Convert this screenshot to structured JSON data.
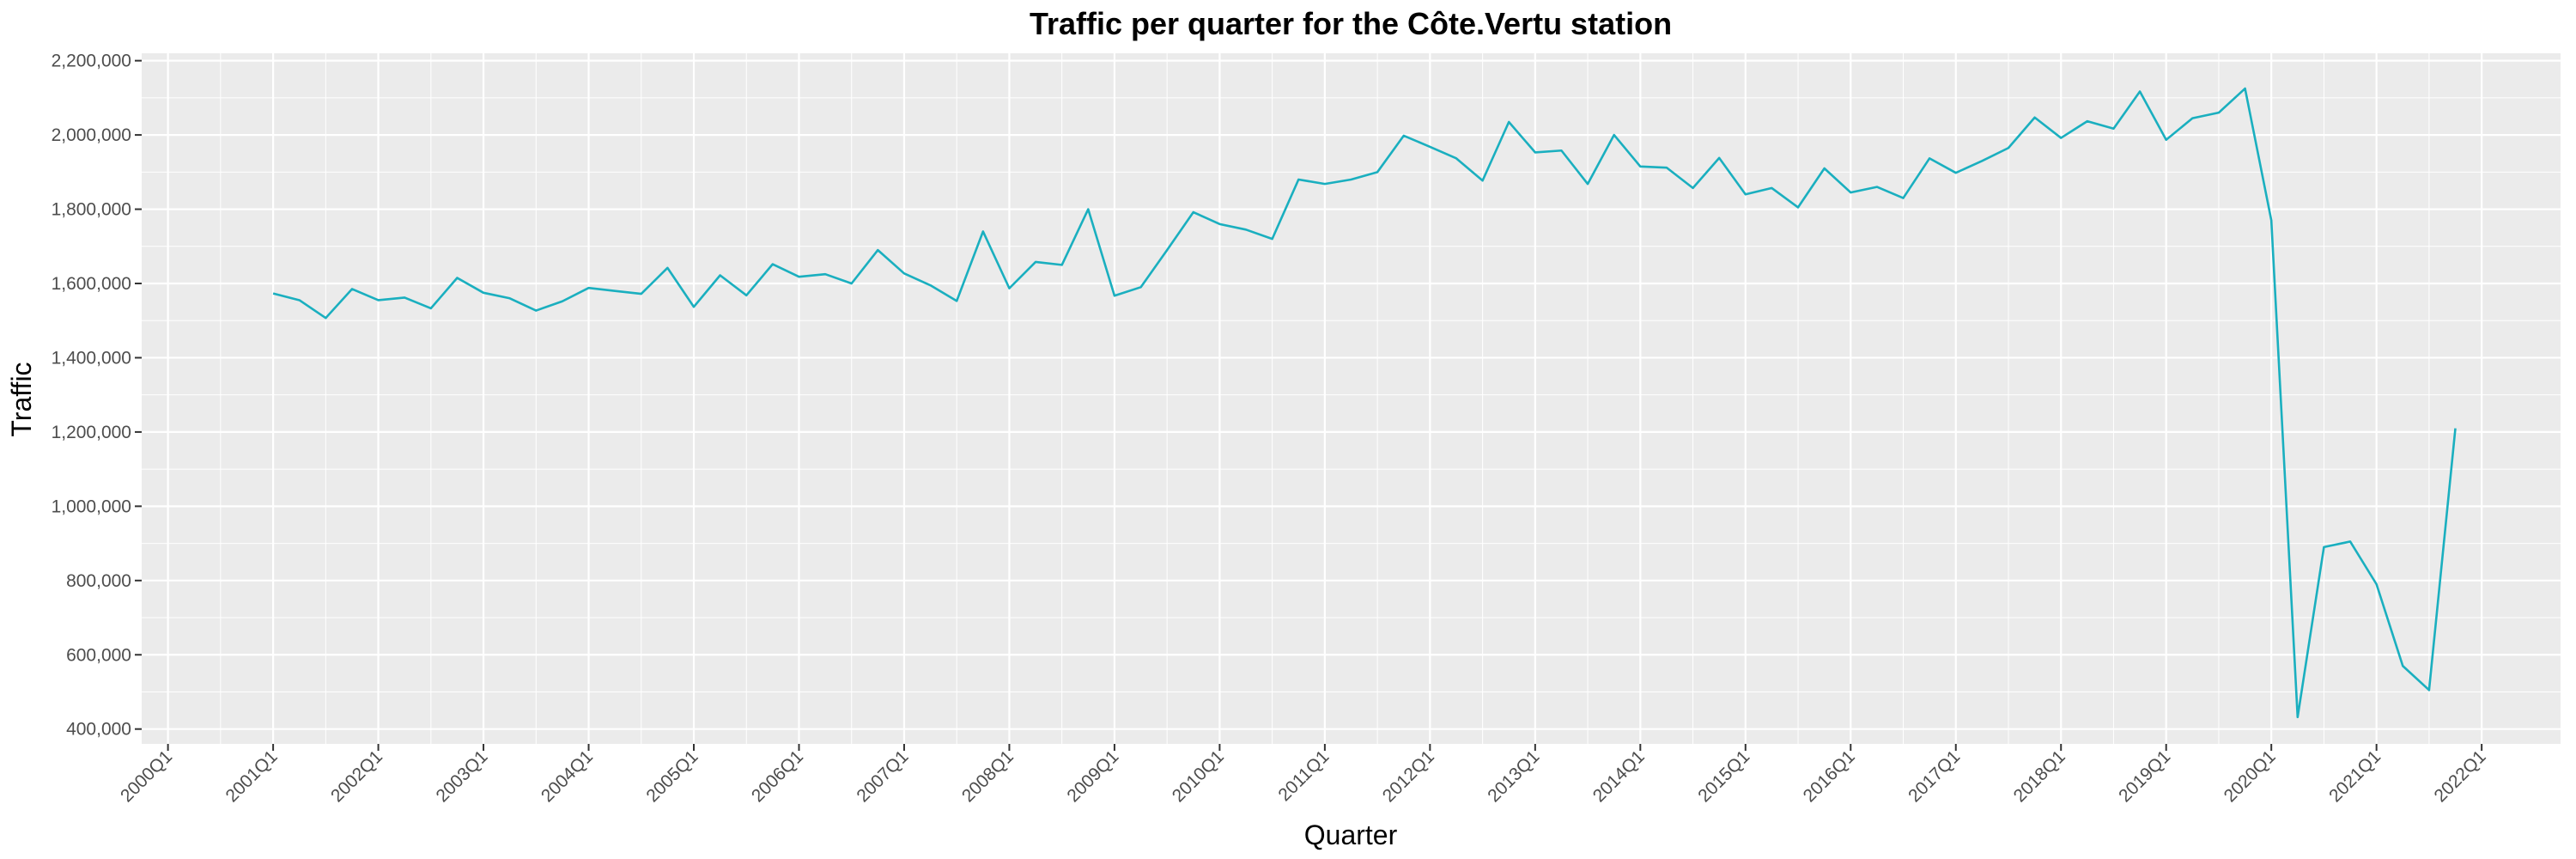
{
  "chart_data": {
    "type": "line",
    "title": "Traffic per quarter for the Côte.Vertu station",
    "xlabel": "Quarter",
    "ylabel": "Traffic",
    "x_ticks": [
      "2000Q1",
      "2001Q1",
      "2002Q1",
      "2003Q1",
      "2004Q1",
      "2005Q1",
      "2006Q1",
      "2007Q1",
      "2008Q1",
      "2009Q1",
      "2010Q1",
      "2011Q1",
      "2012Q1",
      "2013Q1",
      "2014Q1",
      "2015Q1",
      "2016Q1",
      "2017Q1",
      "2018Q1",
      "2019Q1",
      "2020Q1",
      "2021Q1",
      "2022Q1"
    ],
    "y_ticks": [
      "400,000",
      "600,000",
      "800,000",
      "1,000,000",
      "1,200,000",
      "1,400,000",
      "1,600,000",
      "1,800,000",
      "2,000,000",
      "2,200,000"
    ],
    "ylim": [
      360000,
      2220000
    ],
    "xlim": [
      "1999Q4",
      "2022Q4"
    ],
    "grid": true,
    "colors": {
      "line": "#1aafbf",
      "panel": "#ebebeb",
      "grid": "#ffffff"
    },
    "series": [
      {
        "x": [
          "2001Q1",
          "2001Q2",
          "2001Q3",
          "2001Q4",
          "2002Q1",
          "2002Q2",
          "2002Q3",
          "2002Q4",
          "2003Q1",
          "2003Q2",
          "2003Q3",
          "2003Q4",
          "2004Q1",
          "2004Q2",
          "2004Q3",
          "2004Q4",
          "2005Q1",
          "2005Q2",
          "2005Q3",
          "2005Q4",
          "2006Q1",
          "2006Q2",
          "2006Q3",
          "2006Q4",
          "2007Q1",
          "2007Q2",
          "2007Q3",
          "2007Q4",
          "2008Q1",
          "2008Q2",
          "2008Q3",
          "2008Q4",
          "2009Q1",
          "2009Q2",
          "2009Q3",
          "2009Q4",
          "2010Q1",
          "2010Q2",
          "2010Q3",
          "2010Q4",
          "2011Q1",
          "2011Q2",
          "2011Q3",
          "2011Q4",
          "2012Q1",
          "2012Q2",
          "2012Q3",
          "2012Q4",
          "2013Q1",
          "2013Q2",
          "2013Q3",
          "2013Q4",
          "2014Q1",
          "2014Q2",
          "2014Q3",
          "2014Q4",
          "2015Q1",
          "2015Q2",
          "2015Q3",
          "2015Q4",
          "2016Q1",
          "2016Q2",
          "2016Q3",
          "2016Q4",
          "2017Q1",
          "2017Q2",
          "2017Q3",
          "2017Q4",
          "2018Q1",
          "2018Q2",
          "2018Q3",
          "2018Q4",
          "2019Q1",
          "2019Q2",
          "2019Q3",
          "2019Q4",
          "2020Q1",
          "2020Q2",
          "2020Q3",
          "2020Q4",
          "2021Q1",
          "2021Q2",
          "2021Q3",
          "2021Q4"
        ],
        "values": [
          1573000,
          1555000,
          1507000,
          1585000,
          1555000,
          1562000,
          1533000,
          1615000,
          1575000,
          1560000,
          1527000,
          1552000,
          1588000,
          1580000,
          1572000,
          1642000,
          1537000,
          1622000,
          1568000,
          1652000,
          1618000,
          1625000,
          1600000,
          1690000,
          1627000,
          1595000,
          1553000,
          1740000,
          1587000,
          1658000,
          1650000,
          1800000,
          1567000,
          1590000,
          1690000,
          1792000,
          1760000,
          1745000,
          1720000,
          1880000,
          1868000,
          1880000,
          1900000,
          1998000,
          1968000,
          1937000,
          1877000,
          2035000,
          1953000,
          1958000,
          1868000,
          2000000,
          1915000,
          1912000,
          1857000,
          1938000,
          1840000,
          1857000,
          1805000,
          1910000,
          1845000,
          1860000,
          1830000,
          1937000,
          1898000,
          1930000,
          1965000,
          2047000,
          1992000,
          2037000,
          2017000,
          2117000,
          1987000,
          2045000,
          2060000,
          2125000,
          1770000,
          432000,
          890000,
          905000,
          790000,
          570000,
          505000,
          1210000
        ]
      }
    ]
  }
}
